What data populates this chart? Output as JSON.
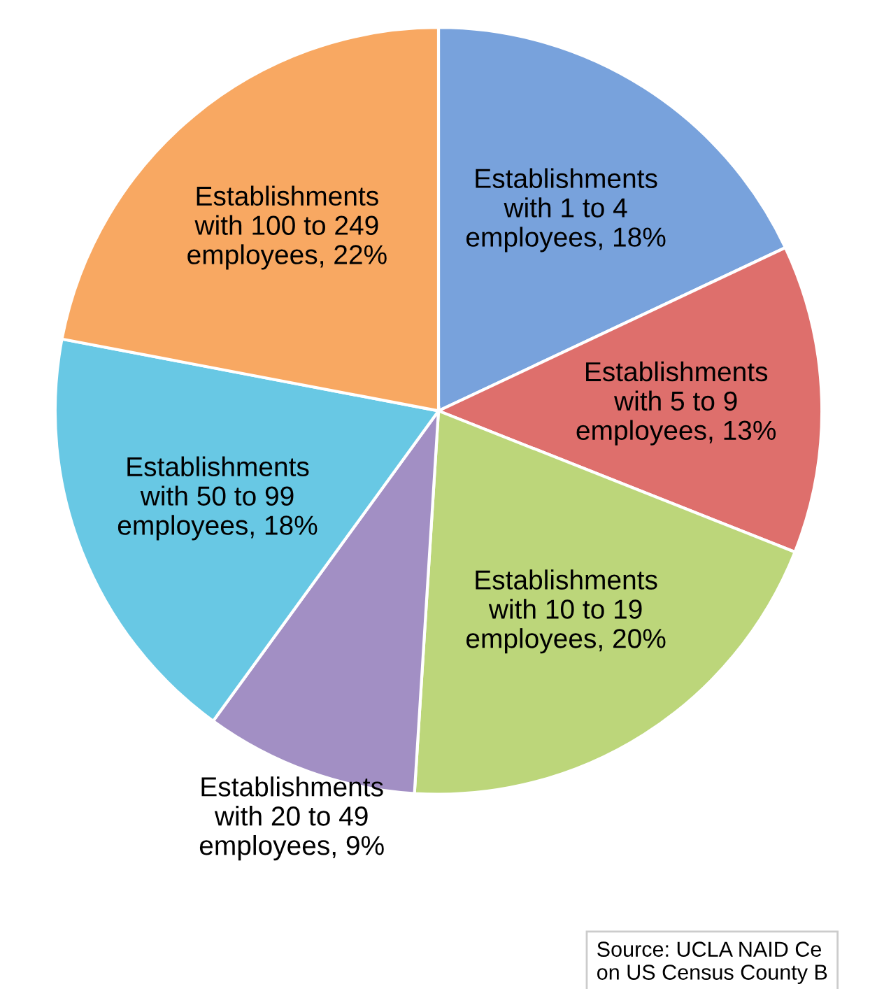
{
  "chart_data": {
    "type": "pie",
    "categories": [
      "Establishments\nwith 1 to 4\nemployees",
      "Establishments\nwith 5 to 9\nemployees",
      "Establishments\nwith 10 to 19\nemployees",
      "Establishments\nwith 20 to 49\nemployees",
      "Establishments\nwith 50 to 99\nemployees",
      "Establishments\nwith 100 to 249\nemployees"
    ],
    "values": [
      18,
      13,
      20,
      9,
      18,
      22
    ],
    "colors": [
      "#78a2dc",
      "#de6f6c",
      "#bcd67a",
      "#a28fc4",
      "#68c8e4",
      "#f8a862"
    ],
    "value_labels": [
      "18%",
      "13%",
      "20%",
      "9%",
      "18%",
      "22%"
    ],
    "annotations": [
      "Source: UCLA NAID Ce\non US Census County B"
    ]
  }
}
